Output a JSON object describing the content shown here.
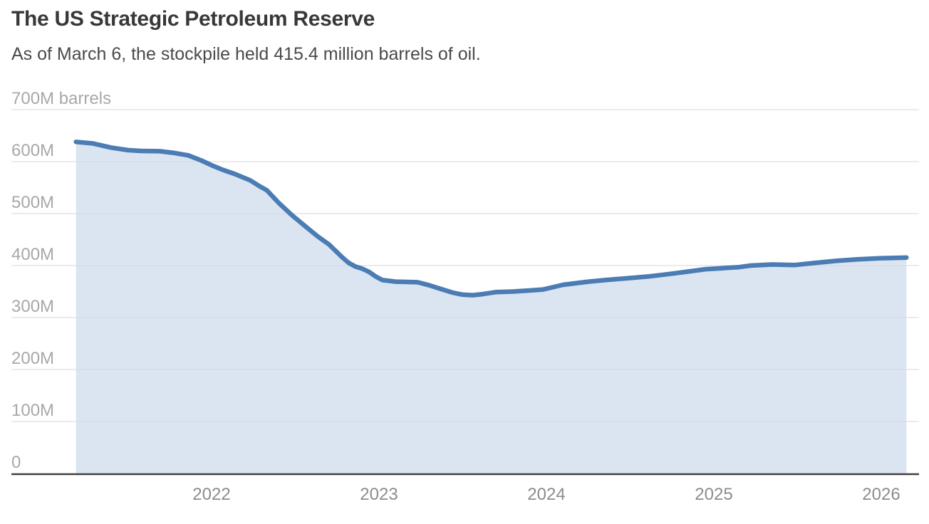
{
  "header": {
    "title": "The US Strategic Petroleum Reserve",
    "subtitle": "As of March 6, the stockpile held 415.4 million barrels of oil."
  },
  "chart_data": {
    "type": "area",
    "title": "The US Strategic Petroleum Reserve",
    "subtitle": "As of March 6, the stockpile held 415.4 million barrels of oil.",
    "unit": "barrels of oil (millions)",
    "latest_value": 415.4,
    "latest_label": "As of March 6",
    "x": [
      2021.19,
      2021.29,
      2021.4,
      2021.5,
      2021.58,
      2021.69,
      2021.77,
      2021.86,
      2021.94,
      2022.0,
      2022.06,
      2022.14,
      2022.23,
      2022.29,
      2022.33,
      2022.4,
      2022.48,
      2022.57,
      2022.63,
      2022.66,
      2022.7,
      2022.78,
      2022.82,
      2022.86,
      2022.9,
      2022.94,
      2022.98,
      2023.02,
      2023.1,
      2023.23,
      2023.3,
      2023.37,
      2023.44,
      2023.5,
      2023.56,
      2023.62,
      2023.7,
      2023.8,
      2023.9,
      2023.98,
      2024.1,
      2024.25,
      2024.35,
      2024.5,
      2024.61,
      2024.74,
      2024.86,
      2024.95,
      2025.05,
      2025.15,
      2025.22,
      2025.35,
      2025.48,
      2025.6,
      2025.73,
      2025.86,
      2025.99,
      2026.1,
      2026.15
    ],
    "values": [
      638,
      635,
      627,
      622,
      620.5,
      620,
      617,
      612,
      602,
      593,
      585,
      576,
      564,
      552,
      545,
      521,
      497,
      473,
      457,
      450,
      441,
      416,
      405,
      398,
      394,
      388,
      379,
      372,
      369,
      368,
      362,
      355,
      348,
      344,
      343,
      345,
      349,
      350,
      352,
      354,
      363,
      369,
      372,
      376,
      379,
      384,
      389,
      393,
      395,
      397,
      400,
      402,
      401,
      405,
      409,
      412,
      414,
      415,
      415.4
    ],
    "yticks": {
      "values": [
        0,
        100,
        200,
        300,
        400,
        500,
        600,
        700
      ],
      "labels": [
        "0",
        "100M",
        "200M",
        "300M",
        "400M",
        "500M",
        "600M",
        "700M barrels"
      ]
    },
    "xticks": {
      "values": [
        2022,
        2023,
        2024,
        2025,
        2026
      ],
      "labels": [
        "2022",
        "2023",
        "2024",
        "2025",
        "2026"
      ]
    },
    "ylim": [
      0,
      700
    ],
    "xlim": [
      2021.19,
      2026.15
    ],
    "grid": "horizontal-only",
    "legend": "none",
    "colors": {
      "line": "#4b7cb4",
      "fill": "#dbe5f1",
      "grid": "#d7d7d7",
      "axis": "#3f3f3f",
      "ylabel": "#a8a8a8",
      "xlabel": "#8c8c8c"
    }
  }
}
